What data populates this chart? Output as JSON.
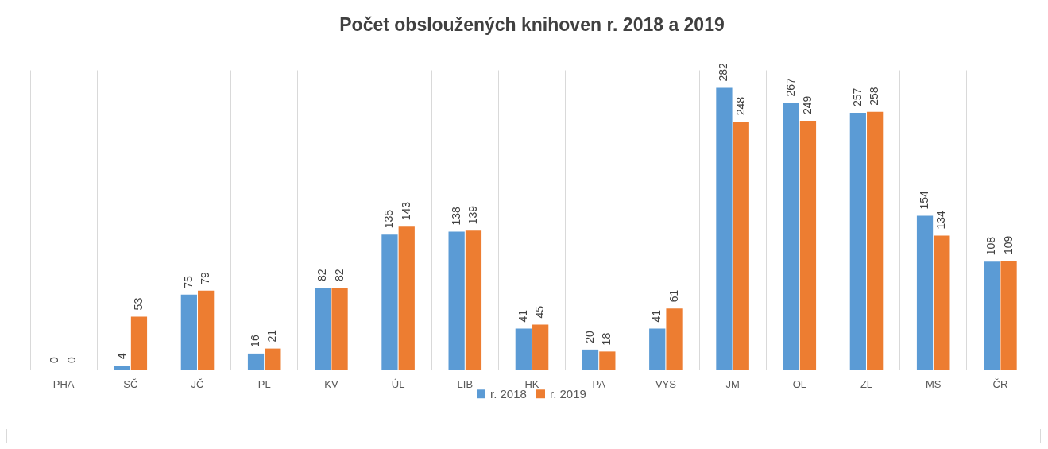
{
  "chart_data": {
    "type": "bar",
    "title": "Počet obsloužených knihoven r. 2018 a 2019",
    "categories": [
      "PHA",
      "SČ",
      "JČ",
      "PL",
      "KV",
      "ÚL",
      "LIB",
      "HK",
      "PA",
      "VYS",
      "JM",
      "OL",
      "ZL",
      "MS",
      "ČR"
    ],
    "series": [
      {
        "name": "r. 2018",
        "color": "#5b9bd5",
        "values": [
          0,
          4,
          75,
          16,
          82,
          135,
          138,
          41,
          20,
          41,
          282,
          267,
          257,
          154,
          108
        ]
      },
      {
        "name": "r. 2019",
        "color": "#ed7d31",
        "values": [
          0,
          53,
          79,
          21,
          82,
          143,
          139,
          45,
          18,
          61,
          248,
          249,
          258,
          134,
          109
        ]
      }
    ],
    "data_labels": true,
    "grid": "x",
    "legend": "bottom"
  }
}
